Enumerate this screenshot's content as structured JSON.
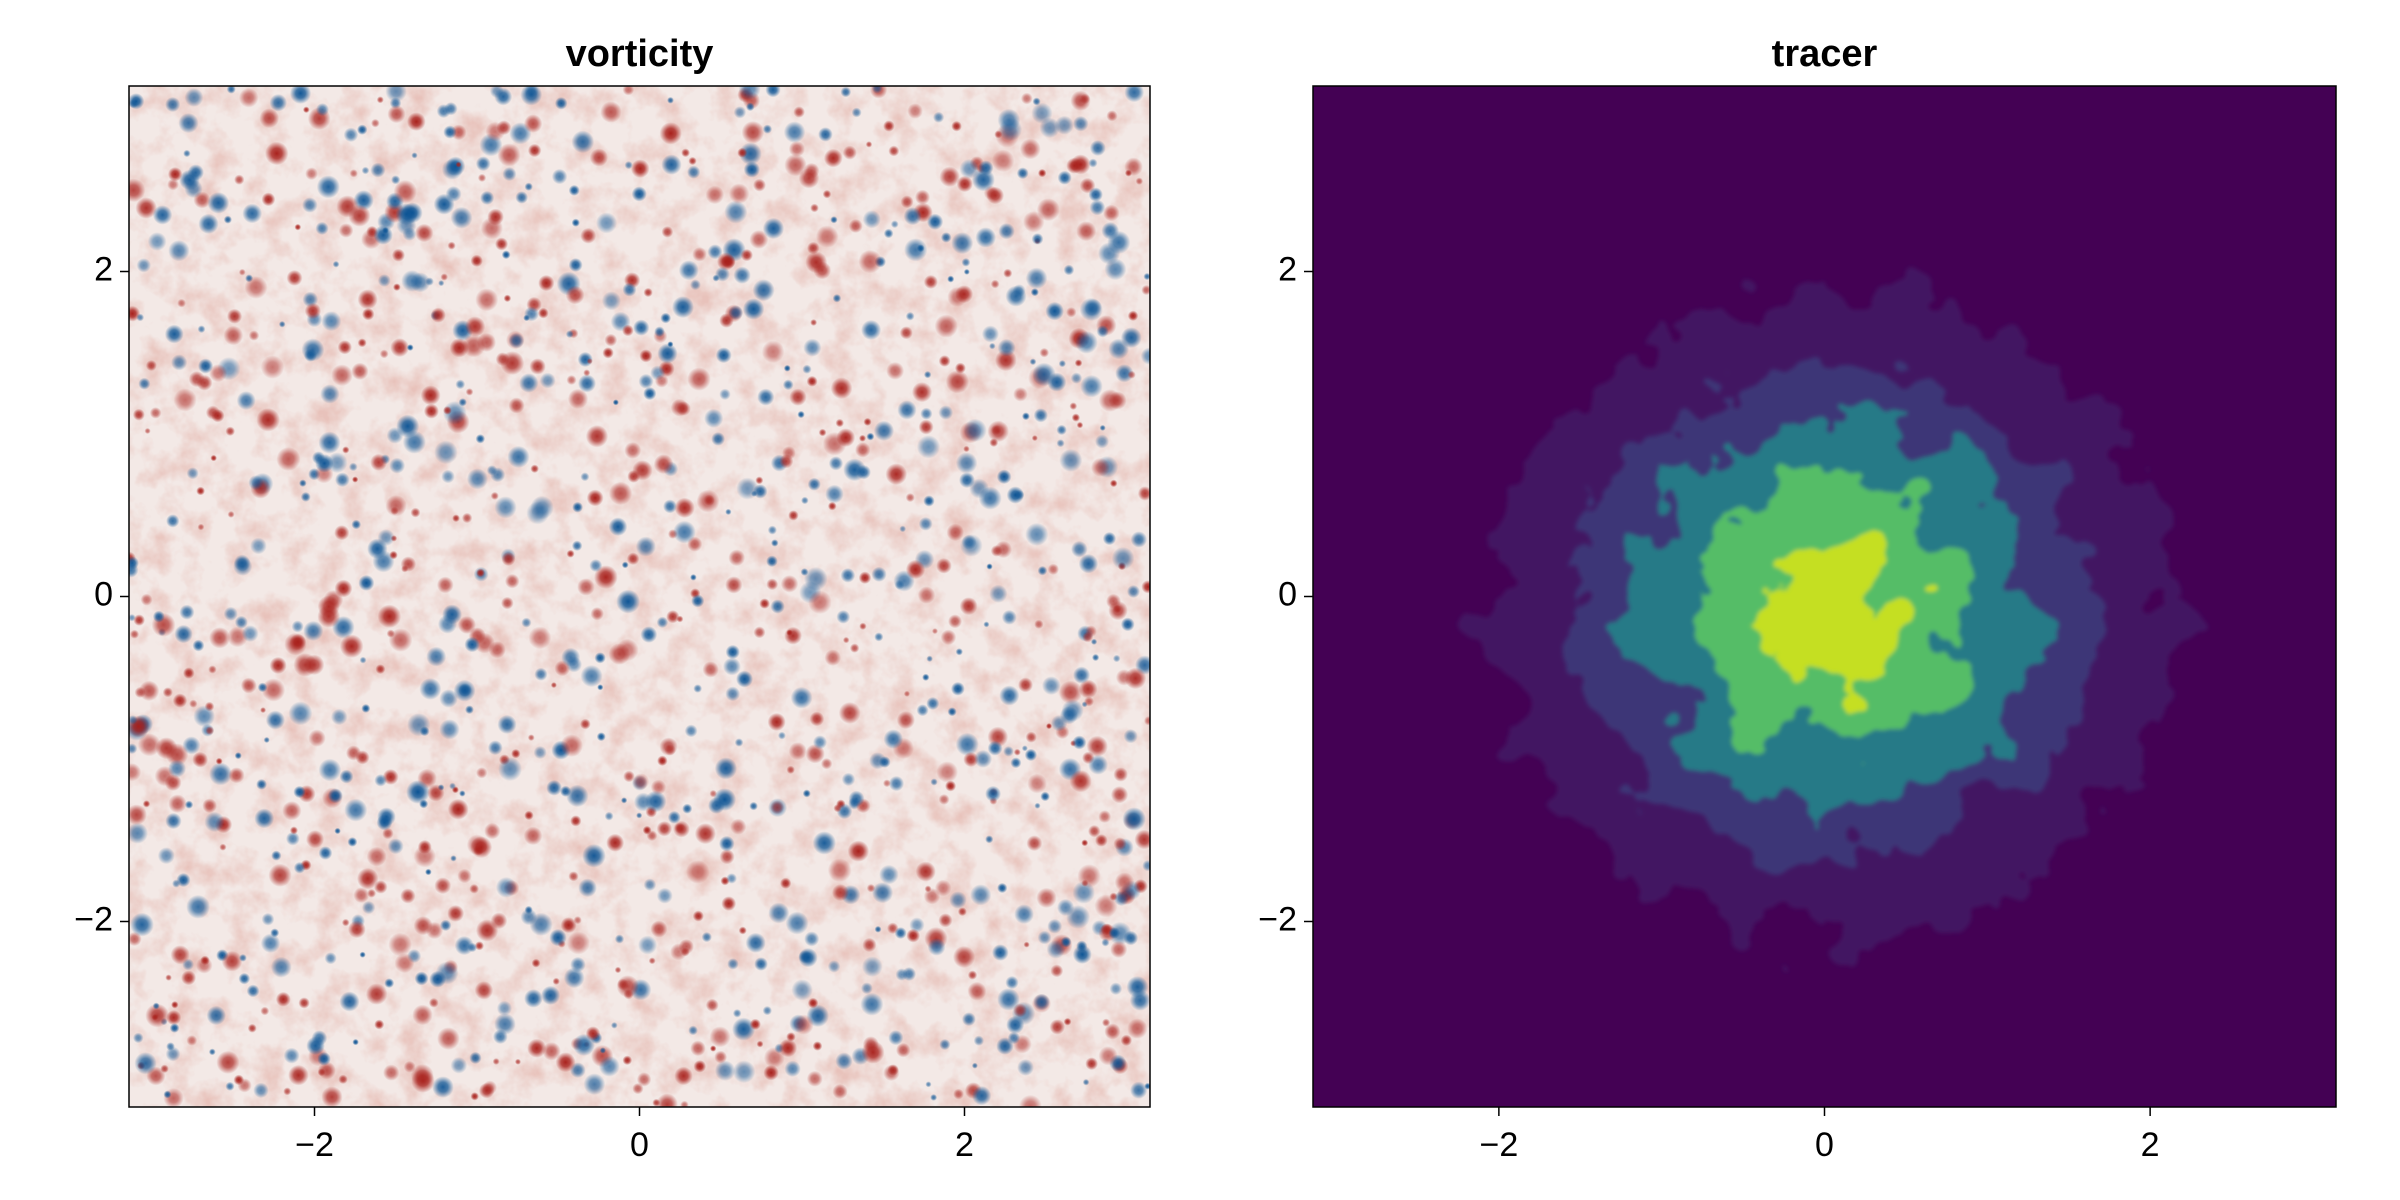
{
  "chart_data": [
    {
      "type": "heatmap",
      "field": "vorticity",
      "title": "vorticity",
      "xlim": [
        -3.14159,
        3.14159
      ],
      "ylim": [
        -3.14159,
        3.14159
      ],
      "xticks": [
        {
          "value": -2,
          "label": "−2"
        },
        0,
        2
      ],
      "yticks": [
        {
          "value": -2,
          "label": "−2"
        },
        0,
        2
      ],
      "colormap": [
        "#0b5394",
        "#f3e9e6",
        "#a81f1a"
      ]
    },
    {
      "type": "heatmap",
      "field": "tracer",
      "title": "tracer",
      "xlim": [
        -3.14159,
        3.14159
      ],
      "ylim": [
        -3.14159,
        3.14159
      ],
      "xticks": [
        {
          "value": -2,
          "label": "−2"
        },
        0,
        2
      ],
      "yticks": [
        {
          "value": -2,
          "label": "−2"
        },
        0,
        2
      ],
      "colormap": [
        "#440154",
        "#3b528b",
        "#21918c",
        "#5ec962",
        "#d2e21b"
      ]
    }
  ]
}
